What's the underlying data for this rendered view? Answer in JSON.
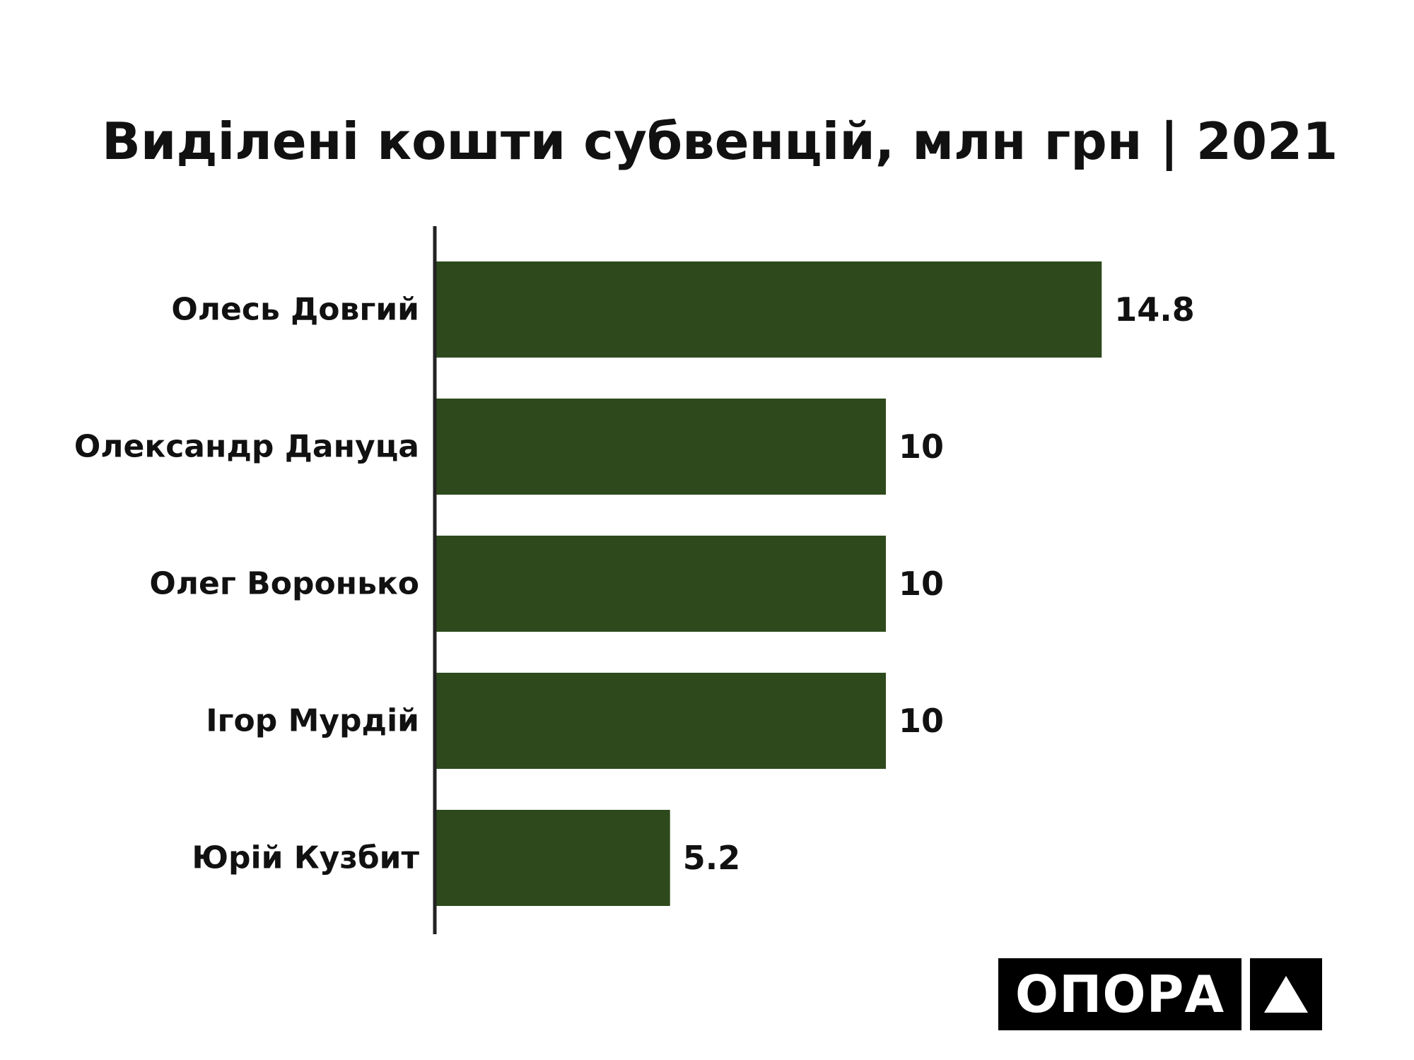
{
  "chart_data": {
    "type": "bar",
    "orientation": "horizontal",
    "title": "Виділені кошти субвенцій, млн грн | 2021",
    "categories": [
      "Олесь Довгий",
      "Олександр Дануца",
      "Олег Воронько",
      "Ігор Мурдій",
      "Юрій Кузбит"
    ],
    "values": [
      14.8,
      10,
      10,
      10,
      5.2
    ],
    "value_labels": [
      "14.8",
      "10",
      "10",
      "10",
      "5.2"
    ],
    "xlim": [
      0,
      20
    ],
    "grid": false,
    "legend": "none",
    "bar_color": "#2e4a1c"
  },
  "logo": {
    "text": "ОПОРА",
    "mark": "triangle-icon"
  }
}
